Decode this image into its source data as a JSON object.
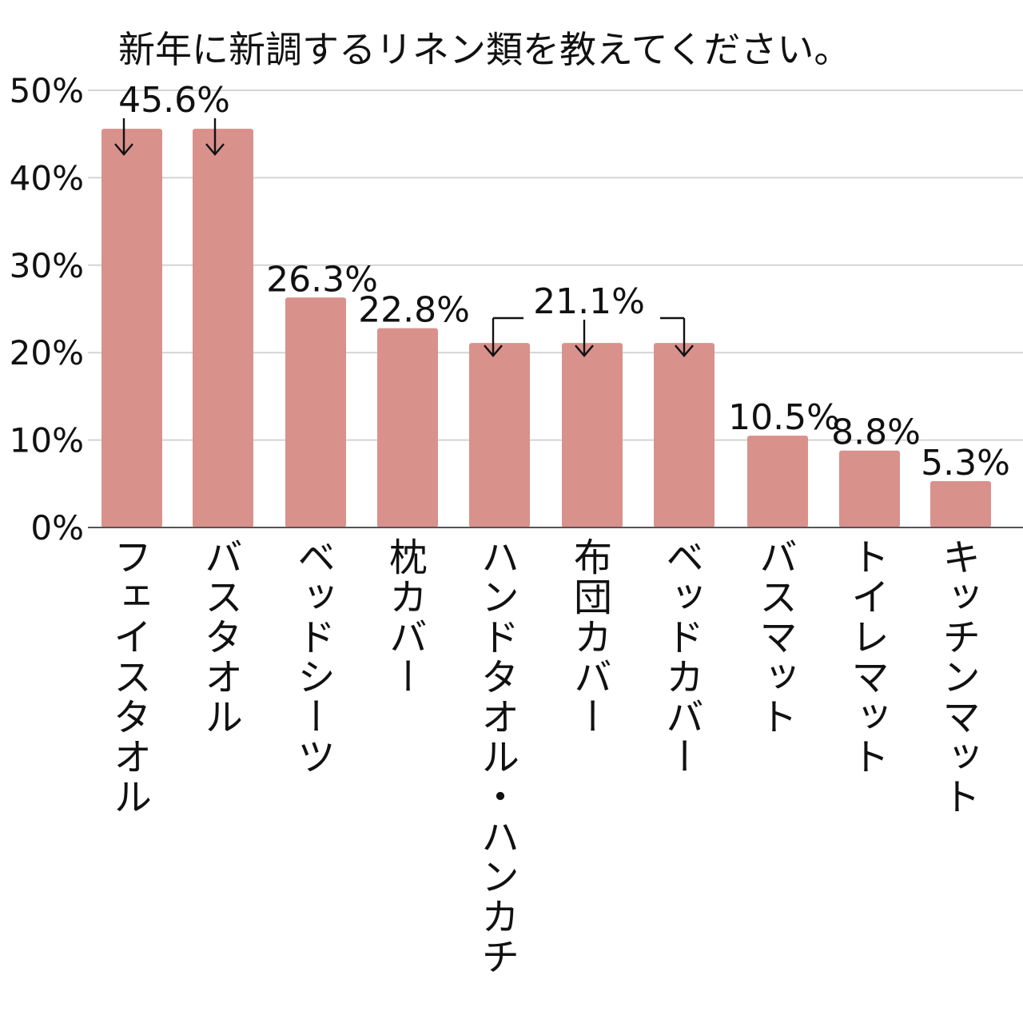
{
  "chart_data": {
    "type": "bar",
    "title": "新年に新調するリネン類を教えてください。",
    "categories": [
      "フェイスタオル",
      "バスタオル",
      "ベッドシーツ",
      "枕カバー",
      "ハンドタオル・ハンカチ",
      "布団カバー",
      "ベッドカバー",
      "バスマット",
      "トイレマット",
      "キッチンマット"
    ],
    "values": [
      45.6,
      45.6,
      26.3,
      22.8,
      21.1,
      21.1,
      21.1,
      10.5,
      8.8,
      5.3
    ],
    "value_labels": [
      {
        "text": "45.6%",
        "applies_to": [
          0,
          1
        ]
      },
      {
        "text": "26.3%",
        "applies_to": [
          2
        ]
      },
      {
        "text": "22.8%",
        "applies_to": [
          3
        ]
      },
      {
        "text": "21.1%",
        "applies_to": [
          4,
          5,
          6
        ]
      },
      {
        "text": "10.5%",
        "applies_to": [
          7
        ]
      },
      {
        "text": "8.8%",
        "applies_to": [
          8
        ]
      },
      {
        "text": "5.3%",
        "applies_to": [
          9
        ]
      }
    ],
    "yticks": [
      "0%",
      "10%",
      "20%",
      "30%",
      "40%",
      "50%"
    ],
    "ylim": [
      0,
      50
    ],
    "xlabel": "",
    "ylabel": "",
    "grid": true,
    "bar_color": "#d9918c",
    "grid_color": "#d4d4d4"
  }
}
